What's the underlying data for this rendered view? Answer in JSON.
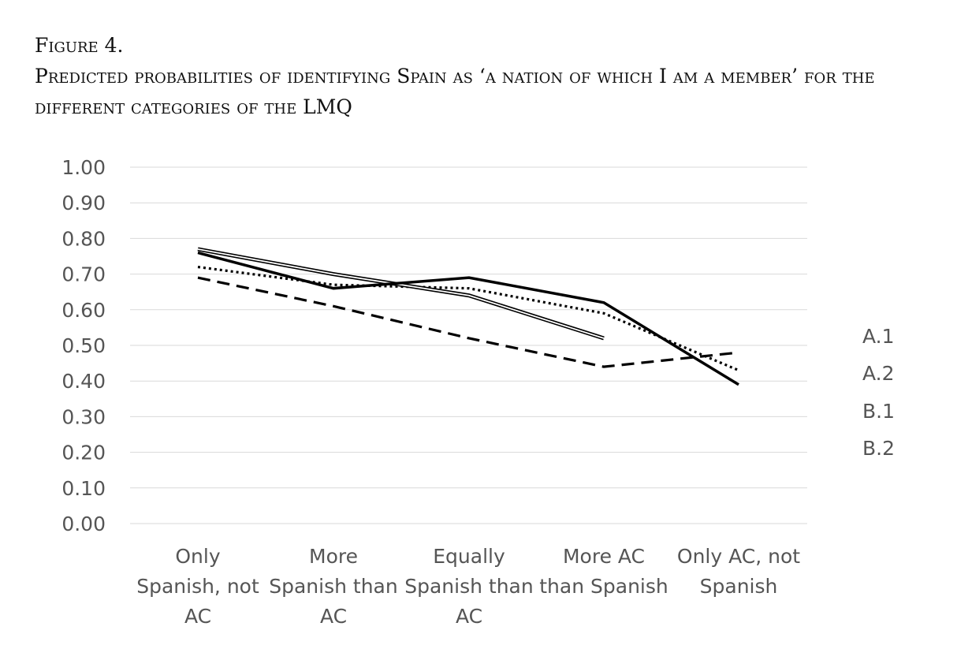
{
  "figure": {
    "label": "Figure 4.",
    "title": "Predicted probabilities of identifying Spain as ‘a nation of which I am a member’ for the different categories of the LMQ"
  },
  "chart_data": {
    "type": "line",
    "title": "Predicted probabilities of identifying Spain as ‘a nation of which I am a member’ for the different categories of the LMQ",
    "xlabel": "",
    "ylabel": "",
    "ylim": [
      0,
      1
    ],
    "yticks": [
      "0.00",
      "0.10",
      "0.20",
      "0.30",
      "0.40",
      "0.50",
      "0.60",
      "0.70",
      "0.80",
      "0.90",
      "1.00"
    ],
    "grid": true,
    "legend_position": "right",
    "categories": [
      [
        "Only",
        "Spanish, not",
        "AC"
      ],
      [
        "More",
        "Spanish than",
        "AC"
      ],
      [
        "Equally",
        "Spanish than",
        "AC"
      ],
      [
        "More AC",
        "than Spanish"
      ],
      [
        "Only AC, not",
        "Spanish"
      ]
    ],
    "series": [
      {
        "name": "A.1",
        "style": "solid",
        "color": "#000000",
        "values": [
          0.76,
          0.66,
          0.69,
          0.62,
          0.39
        ]
      },
      {
        "name": "A.2",
        "style": "dotted",
        "color": "#000000",
        "values": [
          0.72,
          0.67,
          0.66,
          0.59,
          0.43
        ]
      },
      {
        "name": "B.1",
        "style": "double",
        "color": "#000000",
        "values": [
          0.77,
          0.7,
          0.64,
          0.52,
          null
        ]
      },
      {
        "name": "B.2",
        "style": "dashed",
        "color": "#000000",
        "values": [
          0.69,
          0.61,
          0.52,
          0.44,
          0.48
        ]
      }
    ]
  }
}
